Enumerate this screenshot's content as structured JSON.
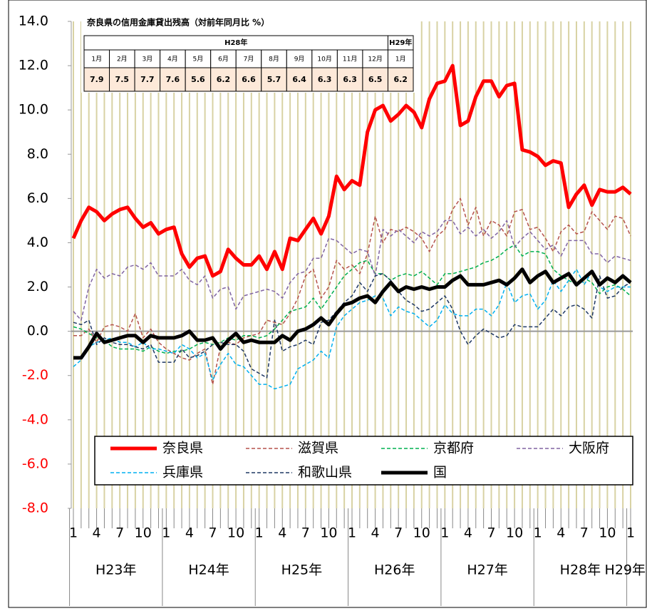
{
  "chart_data": {
    "type": "line",
    "categories": [
      "1",
      null,
      null,
      "4",
      null,
      null,
      "7",
      null,
      null,
      "10",
      null,
      null,
      "1",
      null,
      null,
      "4",
      null,
      null,
      "7",
      null,
      null,
      "10",
      null,
      null,
      "1",
      null,
      null,
      "4",
      null,
      null,
      "7",
      null,
      null,
      "10",
      null,
      null,
      "1",
      null,
      null,
      "4",
      null,
      null,
      "7",
      null,
      null,
      "10",
      null,
      null,
      "1",
      null,
      null,
      "4",
      null,
      null,
      "7",
      null,
      null,
      "10",
      null,
      null,
      "1",
      null,
      null,
      "4",
      null,
      null,
      "7",
      null,
      null,
      "10",
      null,
      null,
      "1"
    ],
    "year_groups": [
      "H23年",
      "H24年",
      "H25年",
      "H26年",
      "H27年",
      "H28年",
      "H29年"
    ],
    "ylim": [
      -8,
      14
    ],
    "yticks": [
      {
        "value": 14,
        "label": "14.0"
      },
      {
        "value": 12,
        "label": "12.0"
      },
      {
        "value": 10,
        "label": "10.0"
      },
      {
        "value": 8,
        "label": "8.0"
      },
      {
        "value": 6,
        "label": "6.0"
      },
      {
        "value": 4,
        "label": "4.0"
      },
      {
        "value": 2,
        "label": "2.0"
      },
      {
        "value": 0,
        "label": "0.0"
      },
      {
        "value": -2,
        "label": "-2.0"
      },
      {
        "value": -4,
        "label": "-4.0"
      },
      {
        "value": -6,
        "label": "-6.0"
      },
      {
        "value": -8,
        "label": "-8.0"
      }
    ],
    "negative_label_color": "#ff0000",
    "vertical_grid": true,
    "legend": "bottom",
    "series": [
      {
        "name": "奈良県",
        "color": "#ff0000",
        "style": "solid",
        "width": 5,
        "values": [
          4.2,
          5.0,
          5.6,
          5.4,
          5.0,
          5.3,
          5.5,
          5.6,
          5.1,
          4.7,
          4.9,
          4.4,
          4.6,
          4.7,
          3.5,
          2.9,
          3.3,
          3.4,
          2.5,
          2.7,
          3.7,
          3.3,
          3.0,
          3.0,
          3.4,
          2.8,
          3.6,
          2.8,
          4.2,
          4.1,
          4.6,
          5.1,
          4.4,
          5.2,
          7.0,
          6.4,
          6.8,
          6.6,
          9.0,
          10.0,
          10.2,
          9.5,
          9.8,
          10.2,
          9.9,
          9.2,
          10.5,
          11.2,
          11.3,
          12.0,
          9.3,
          9.5,
          10.6,
          11.3,
          11.3,
          10.6,
          11.1,
          11.2,
          8.2,
          8.1,
          7.9,
          7.5,
          7.7,
          7.6,
          5.6,
          6.2,
          6.6,
          5.7,
          6.4,
          6.3,
          6.3,
          6.5,
          6.2
        ]
      },
      {
        "name": "滋賀県",
        "color": "#b5524b",
        "style": "dashed",
        "width": 1.5,
        "values": [
          -0.2,
          -0.2,
          0.1,
          -0.5,
          0.2,
          0.3,
          0.2,
          0.0,
          0.8,
          -0.3,
          0.1,
          -0.5,
          -0.8,
          -1.0,
          -1.2,
          -1.3,
          -1.0,
          -0.8,
          -2.4,
          -0.7,
          -0.5,
          -0.6,
          -0.3,
          -0.2,
          -0.1,
          0.5,
          0.4,
          0.3,
          0.8,
          1.5,
          2.5,
          2.8,
          1.5,
          2.0,
          3.2,
          2.8,
          3.0,
          2.6,
          3.5,
          5.2,
          4.0,
          4.6,
          4.5,
          4.7,
          4.5,
          4.2,
          3.6,
          4.3,
          4.6,
          5.5,
          6.0,
          4.8,
          5.6,
          4.3,
          5.0,
          4.8,
          4.3,
          5.4,
          5.5,
          4.6,
          4.7,
          4.2,
          3.6,
          4.5,
          4.8,
          4.4,
          4.5,
          5.4,
          5.0,
          4.6,
          5.2,
          5.1,
          4.3
        ]
      },
      {
        "name": "京都府",
        "color": "#00b050",
        "style": "dashed",
        "width": 1.5,
        "values": [
          0.2,
          0.1,
          -0.1,
          -0.3,
          -0.4,
          -0.7,
          -0.8,
          -0.8,
          -0.8,
          -0.9,
          -0.7,
          -0.9,
          -1.0,
          -0.9,
          -0.9,
          -0.8,
          -0.6,
          -0.5,
          -0.6,
          -0.5,
          -0.3,
          -0.4,
          -0.2,
          -0.2,
          -0.3,
          -0.2,
          0.1,
          0.5,
          0.9,
          1.0,
          1.1,
          1.5,
          1.0,
          1.5,
          2.0,
          2.5,
          2.8,
          3.1,
          3.2,
          2.6,
          2.6,
          2.3,
          2.5,
          2.6,
          2.5,
          2.7,
          2.4,
          2.1,
          2.6,
          2.6,
          2.7,
          2.8,
          2.9,
          3.1,
          3.2,
          3.4,
          3.7,
          3.9,
          3.4,
          3.6,
          3.6,
          3.5,
          2.8,
          2.5,
          2.3,
          2.1,
          2.4,
          2.2,
          1.7,
          2.0,
          2.1,
          1.9,
          1.6
        ]
      },
      {
        "name": "大阪府",
        "color": "#8064a2",
        "style": "dashed",
        "width": 1.5,
        "values": [
          0.9,
          0.5,
          2.0,
          2.8,
          2.4,
          2.6,
          2.5,
          2.9,
          3.0,
          2.8,
          3.1,
          2.5,
          2.5,
          2.5,
          2.8,
          2.3,
          2.1,
          2.5,
          1.5,
          1.9,
          2.0,
          1.0,
          1.6,
          1.7,
          1.8,
          1.9,
          1.8,
          1.5,
          2.2,
          2.6,
          2.7,
          3.3,
          3.3,
          4.2,
          4.1,
          3.8,
          3.5,
          3.7,
          3.6,
          2.5,
          4.6,
          4.3,
          4.6,
          4.3,
          4.0,
          4.5,
          4.3,
          4.5,
          5.0,
          5.0,
          4.4,
          4.7,
          4.3,
          4.6,
          4.2,
          4.5,
          5.0,
          3.8,
          4.2,
          4.5,
          4.1,
          3.7,
          3.9,
          3.4,
          4.1,
          4.1,
          4.1,
          3.5,
          3.5,
          3.1,
          3.4,
          3.3,
          3.2
        ]
      },
      {
        "name": "兵庫県",
        "color": "#00b0f0",
        "style": "dashed",
        "width": 1.5,
        "values": [
          -1.6,
          -1.3,
          -0.7,
          -0.5,
          -0.4,
          -0.3,
          -0.5,
          -0.5,
          -0.7,
          -0.5,
          -0.8,
          -0.8,
          -0.9,
          -1.0,
          -0.6,
          -0.8,
          -1.2,
          -1.0,
          -2.2,
          -1.5,
          -1.0,
          -1.5,
          -1.6,
          -2.0,
          -2.4,
          -2.4,
          -2.6,
          -2.5,
          -2.4,
          -1.7,
          -1.5,
          -1.3,
          -0.9,
          -1.2,
          0.2,
          0.7,
          1.0,
          1.3,
          1.4,
          1.6,
          1.5,
          0.7,
          1.1,
          0.9,
          0.8,
          0.5,
          0.2,
          0.5,
          1.2,
          0.8,
          0.7,
          0.7,
          1.0,
          1.0,
          0.7,
          1.2,
          2.2,
          1.3,
          1.6,
          1.7,
          1.0,
          1.4,
          2.3,
          1.8,
          2.3,
          2.8,
          2.1,
          2.7,
          2.0,
          1.8,
          2.0,
          2.0,
          2.0
        ]
      },
      {
        "name": "和歌山県",
        "color": "#1f3864",
        "style": "dashed",
        "width": 1.5,
        "values": [
          0.4,
          0.3,
          0.5,
          -0.6,
          -0.3,
          -0.5,
          -0.6,
          -0.6,
          -0.7,
          -0.8,
          -0.6,
          -1.4,
          -1.4,
          -1.4,
          -0.8,
          -1.2,
          -1.1,
          -0.9,
          -0.6,
          -0.5,
          -0.6,
          -0.6,
          -0.9,
          -1.7,
          -1.9,
          -2.1,
          0.5,
          -0.9,
          -0.7,
          -0.6,
          -0.4,
          -0.6,
          0.4,
          0.5,
          0.9,
          1.3,
          1.6,
          2.2,
          1.8,
          2.5,
          2.6,
          2.3,
          1.8,
          1.4,
          1.2,
          0.9,
          1.0,
          1.3,
          1.6,
          1.0,
          0.0,
          -0.6,
          -0.2,
          0.1,
          -0.1,
          -0.3,
          -0.2,
          0.3,
          0.2,
          0.2,
          0.2,
          0.6,
          1.0,
          0.7,
          1.1,
          1.2,
          1.0,
          0.6,
          2.5,
          1.5,
          1.6,
          2.0,
          2.2
        ]
      },
      {
        "name": "国",
        "color": "#000000",
        "style": "solid",
        "width": 5,
        "values": [
          -1.2,
          -1.2,
          -0.7,
          -0.1,
          -0.5,
          -0.4,
          -0.3,
          -0.2,
          -0.2,
          -0.5,
          -0.2,
          -0.3,
          -0.3,
          -0.3,
          -0.2,
          0.0,
          -0.4,
          -0.4,
          -0.3,
          -0.8,
          -0.4,
          -0.1,
          -0.5,
          -0.4,
          -0.5,
          -0.5,
          -0.5,
          -0.2,
          -0.4,
          0.0,
          0.1,
          0.3,
          0.6,
          0.3,
          0.8,
          1.2,
          1.3,
          1.5,
          1.6,
          1.3,
          1.8,
          2.2,
          1.8,
          2.0,
          1.9,
          2.0,
          1.9,
          2.0,
          2.0,
          2.3,
          2.5,
          2.1,
          2.1,
          2.1,
          2.2,
          2.3,
          2.1,
          2.4,
          2.8,
          2.2,
          2.5,
          2.7,
          2.2,
          2.4,
          2.6,
          2.1,
          2.4,
          2.7,
          2.1,
          2.4,
          2.2,
          2.5,
          2.2
        ]
      }
    ],
    "inset": {
      "title": "奈良県の信用金庫貸出残高（対前年同月比 %）",
      "groups": [
        {
          "label": "H28年",
          "span": 12
        },
        {
          "label": "H29年",
          "span": 1
        }
      ],
      "months": [
        "1月",
        "2月",
        "3月",
        "4月",
        "5月",
        "6月",
        "7月",
        "8月",
        "9月",
        "10月",
        "11月",
        "12月",
        "1月"
      ],
      "values": [
        7.9,
        7.5,
        7.7,
        7.6,
        5.6,
        6.2,
        6.6,
        5.7,
        6.4,
        6.3,
        6.3,
        6.5,
        6.2
      ],
      "fill": "#fde9d9"
    }
  }
}
